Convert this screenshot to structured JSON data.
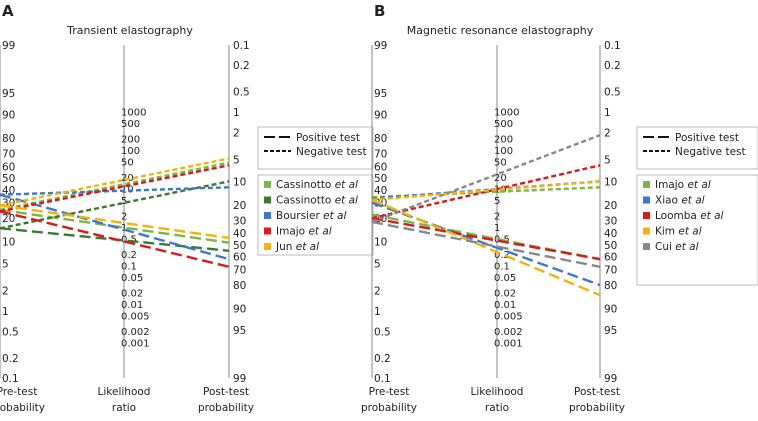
{
  "chart_data": [
    {
      "type": "line",
      "panel_label": "A",
      "title": "Transient elastography",
      "left_ticks": [
        "0.1",
        "0.2",
        "0.5",
        "1",
        "2",
        "5",
        "10",
        "20",
        "30",
        "40",
        "50",
        "60",
        "70",
        "80",
        "90",
        "95",
        "99"
      ],
      "mid_ticks": [
        "1000",
        "500",
        "200",
        "100",
        "50",
        "20",
        "10",
        "5",
        "2",
        "1",
        "0.5",
        "0.2",
        "0.1",
        "0.05",
        "0.02",
        "0.01",
        "0.005",
        "0.002",
        "0.001"
      ],
      "right_ticks": [
        "99",
        "95",
        "90",
        "80",
        "70",
        "60",
        "50",
        "40",
        "30",
        "20",
        "10",
        "5",
        "2",
        "1",
        "0.5",
        "0.2",
        "0.1"
      ],
      "x_labels": {
        "left": [
          "Pre-test",
          "probability"
        ],
        "mid": [
          "Likelihood",
          "ratio"
        ],
        "right": [
          "Post-test",
          "probability"
        ]
      },
      "test_legend": [
        {
          "label": "Positive test",
          "style": "long-dash"
        },
        {
          "label": "Negative test",
          "style": "short-dash"
        }
      ],
      "series_legend": [
        {
          "name": "Cassinotto",
          "suffix": "et al",
          "color": "#7ab648"
        },
        {
          "name": "Cassinotto",
          "suffix": "et al",
          "color": "#3c7a2f"
        },
        {
          "name": "Boursier",
          "suffix": "et al",
          "color": "#3d78c9"
        },
        {
          "name": "Imajo",
          "suffix": "et al",
          "color": "#d9191c"
        },
        {
          "name": "Jun",
          "suffix": "et al",
          "color": "#f3b20f"
        }
      ],
      "lines": [
        {
          "series": 0,
          "test": "positive",
          "pre_pct": 25,
          "post_pct": 48
        },
        {
          "series": 0,
          "test": "negative",
          "pre_pct": 25,
          "post_pct": 5.5
        },
        {
          "series": 1,
          "test": "positive",
          "pre_pct": 15,
          "post_pct": 55
        },
        {
          "series": 1,
          "test": "negative",
          "pre_pct": 15,
          "post_pct": 10
        },
        {
          "series": 2,
          "test": "positive",
          "pre_pct": 36,
          "post_pct": 62
        },
        {
          "series": 2,
          "test": "negative",
          "pre_pct": 36,
          "post_pct": 12
        },
        {
          "series": 3,
          "test": "positive",
          "pre_pct": 24,
          "post_pct": 68
        },
        {
          "series": 3,
          "test": "negative",
          "pre_pct": 24,
          "post_pct": 6
        },
        {
          "series": 4,
          "test": "positive",
          "pre_pct": 28,
          "post_pct": 44
        },
        {
          "series": 4,
          "test": "negative",
          "pre_pct": 28,
          "post_pct": 4.8
        }
      ]
    },
    {
      "type": "line",
      "panel_label": "B",
      "title": "Magnetic resonance elastography",
      "left_ticks": [
        "0.1",
        "0.2",
        "0.5",
        "1",
        "2",
        "5",
        "10",
        "20",
        "30",
        "40",
        "50",
        "60",
        "70",
        "80",
        "90",
        "95",
        "99"
      ],
      "mid_ticks": [
        "1000",
        "500",
        "200",
        "100",
        "50",
        "20",
        "10",
        "5",
        "2",
        "1",
        "0.5",
        "0.2",
        "0.1",
        "0.05",
        "0.02",
        "0.01",
        "0.005",
        "0.002",
        "0.001"
      ],
      "right_ticks": [
        "99",
        "95",
        "90",
        "80",
        "70",
        "60",
        "50",
        "40",
        "30",
        "20",
        "10",
        "5",
        "2",
        "1",
        "0.5",
        "0.2",
        "0.1"
      ],
      "x_labels": {
        "left": [
          "Pre-test",
          "probability"
        ],
        "mid": [
          "Likelihood",
          "ratio"
        ],
        "right": [
          "Post-test",
          "probability"
        ]
      },
      "test_legend": [
        {
          "label": "Positive test",
          "style": "long-dash"
        },
        {
          "label": "Negative test",
          "style": "short-dash"
        }
      ],
      "series_legend": [
        {
          "name": "Imajo",
          "suffix": "et al",
          "color": "#7ab648"
        },
        {
          "name": "Xiao",
          "suffix": "et al",
          "color": "#3d78c9"
        },
        {
          "name": "Loomba",
          "suffix": "et al",
          "color": "#d9191c"
        },
        {
          "name": "Kim",
          "suffix": "et al",
          "color": "#f3b20f"
        },
        {
          "name": "Cui",
          "suffix": "et al",
          "color": "#888888"
        }
      ],
      "lines": [
        {
          "series": 0,
          "test": "positive",
          "pre_pct": 22,
          "post_pct": 62
        },
        {
          "series": 0,
          "test": "negative",
          "pre_pct": 34,
          "post_pct": 12
        },
        {
          "series": 1,
          "test": "positive",
          "pre_pct": 30,
          "post_pct": 80
        },
        {
          "series": 1,
          "test": "negative",
          "pre_pct": 33,
          "post_pct": 10
        },
        {
          "series": 2,
          "test": "positive",
          "pre_pct": 20,
          "post_pct": 62
        },
        {
          "series": 2,
          "test": "negative",
          "pre_pct": 20,
          "post_pct": 6
        },
        {
          "series": 3,
          "test": "positive",
          "pre_pct": 32,
          "post_pct": 85
        },
        {
          "series": 3,
          "test": "negative",
          "pre_pct": 32,
          "post_pct": 10
        },
        {
          "series": 4,
          "test": "positive",
          "pre_pct": 18,
          "post_pct": 68
        },
        {
          "series": 4,
          "test": "negative",
          "pre_pct": 18,
          "post_pct": 2.2
        }
      ]
    }
  ]
}
